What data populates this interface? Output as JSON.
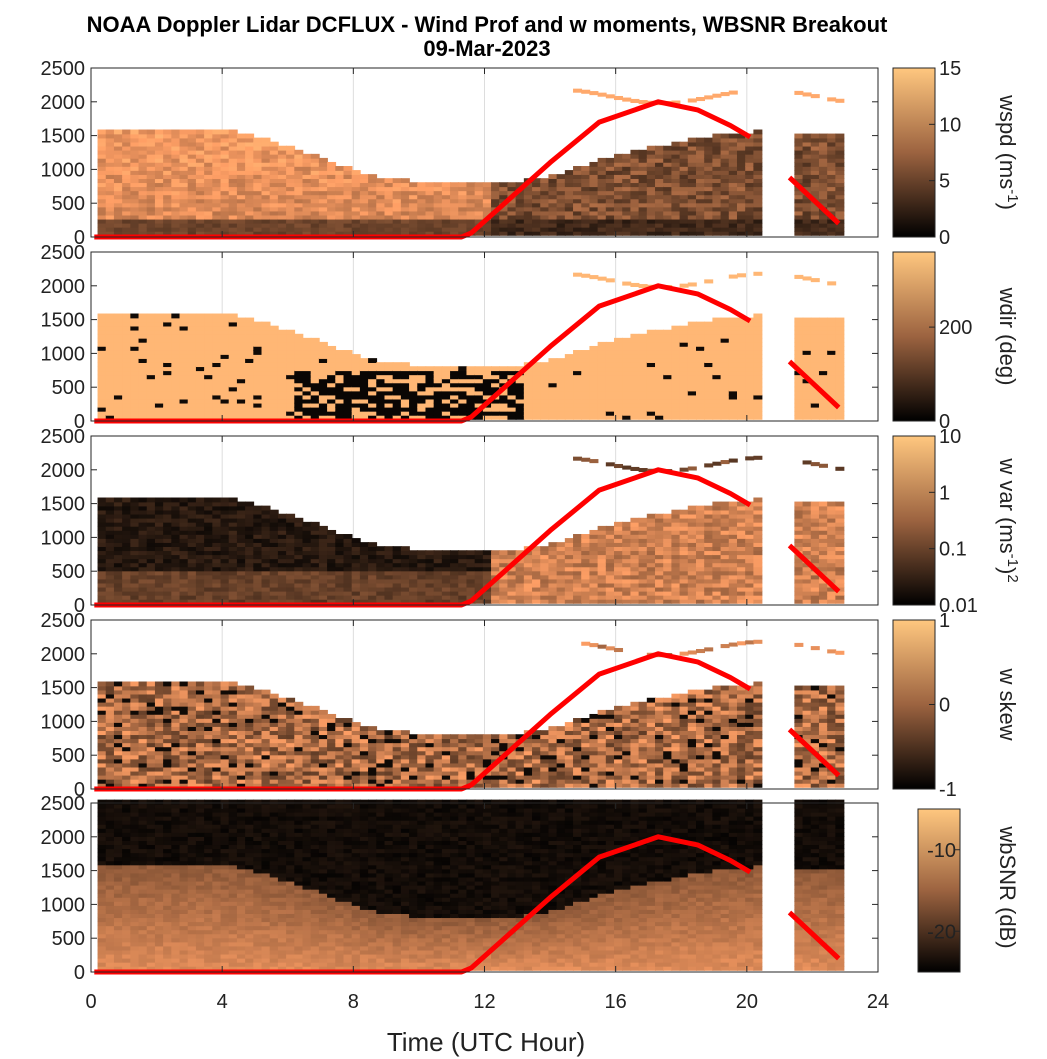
{
  "chart_data": {
    "type": "heatmap",
    "title": "NOAA Doppler Lidar DCFLUX - Wind Prof and w moments, WBSNR Breakout",
    "subtitle": "09-Mar-2023",
    "xlabel": "Time (UTC Hour)",
    "xlim": [
      0,
      24
    ],
    "x_ticks": [
      "0",
      "4",
      "8",
      "12",
      "16",
      "20",
      "24"
    ],
    "y_ticks": [
      "0",
      "500",
      "1000",
      "1500",
      "2000",
      "2500"
    ],
    "ylim": [
      0,
      2500
    ],
    "grid": true,
    "colormap": "copper",
    "panels": [
      {
        "name": "wspd",
        "cb_label": "wspd (ms",
        "cb_sup": "-1",
        "cb_suffix": ")",
        "cb_ticks": [
          "0",
          "5",
          "10",
          "15"
        ],
        "clim": [
          0,
          15
        ],
        "scale": "linear"
      },
      {
        "name": "wdir",
        "cb_label": "wdir (deg)",
        "cb_sup": "",
        "cb_suffix": "",
        "cb_ticks": [
          "0",
          "200"
        ],
        "clim": [
          0,
          360
        ],
        "scale": "linear"
      },
      {
        "name": "w var",
        "cb_label": "w var (ms",
        "cb_sup": "-1",
        "cb_suffix": ")",
        "cb_sup2": "2",
        "cb_ticks": [
          "0.01",
          "0.1",
          "1",
          "10"
        ],
        "clim": [
          0.01,
          10
        ],
        "scale": "log"
      },
      {
        "name": "w skew",
        "cb_label": "w skew",
        "cb_sup": "",
        "cb_suffix": "",
        "cb_ticks": [
          "-1",
          "0",
          "1"
        ],
        "clim": [
          -1,
          1
        ],
        "scale": "linear"
      },
      {
        "name": "wbSNR",
        "cb_label": "wbSNR (dB)",
        "cb_sup": "",
        "cb_suffix": "",
        "cb_ticks": [
          "-20",
          "-10"
        ],
        "clim": [
          -25,
          -5
        ],
        "scale": "linear"
      }
    ],
    "boundary_layer_top": {
      "x": [
        0.2,
        2,
        4,
        6,
        8,
        9,
        10,
        11,
        11.5,
        12,
        13,
        14,
        15,
        16,
        17,
        18,
        19,
        20,
        20.4,
        21.4,
        22,
        22.8
      ],
      "y": [
        1550,
        1560,
        1580,
        1300,
        950,
        820,
        800,
        790,
        780,
        760,
        800,
        900,
        1050,
        1200,
        1300,
        1400,
        1480,
        1520,
        1560,
        1500,
        1500,
        1500
      ]
    },
    "red_line": {
      "segment1": {
        "x": [
          0.1,
          11.3,
          11.6,
          12.5,
          14,
          15.5,
          17.3,
          18.5,
          19.5,
          20.1
        ],
        "y": [
          0,
          0,
          60,
          450,
          1100,
          1700,
          2000,
          1880,
          1650,
          1480
        ]
      },
      "segment2": {
        "x": [
          21.3,
          22.8
        ],
        "y": [
          880,
          200
        ]
      }
    },
    "gap": [
      20.4,
      21.4
    ]
  }
}
